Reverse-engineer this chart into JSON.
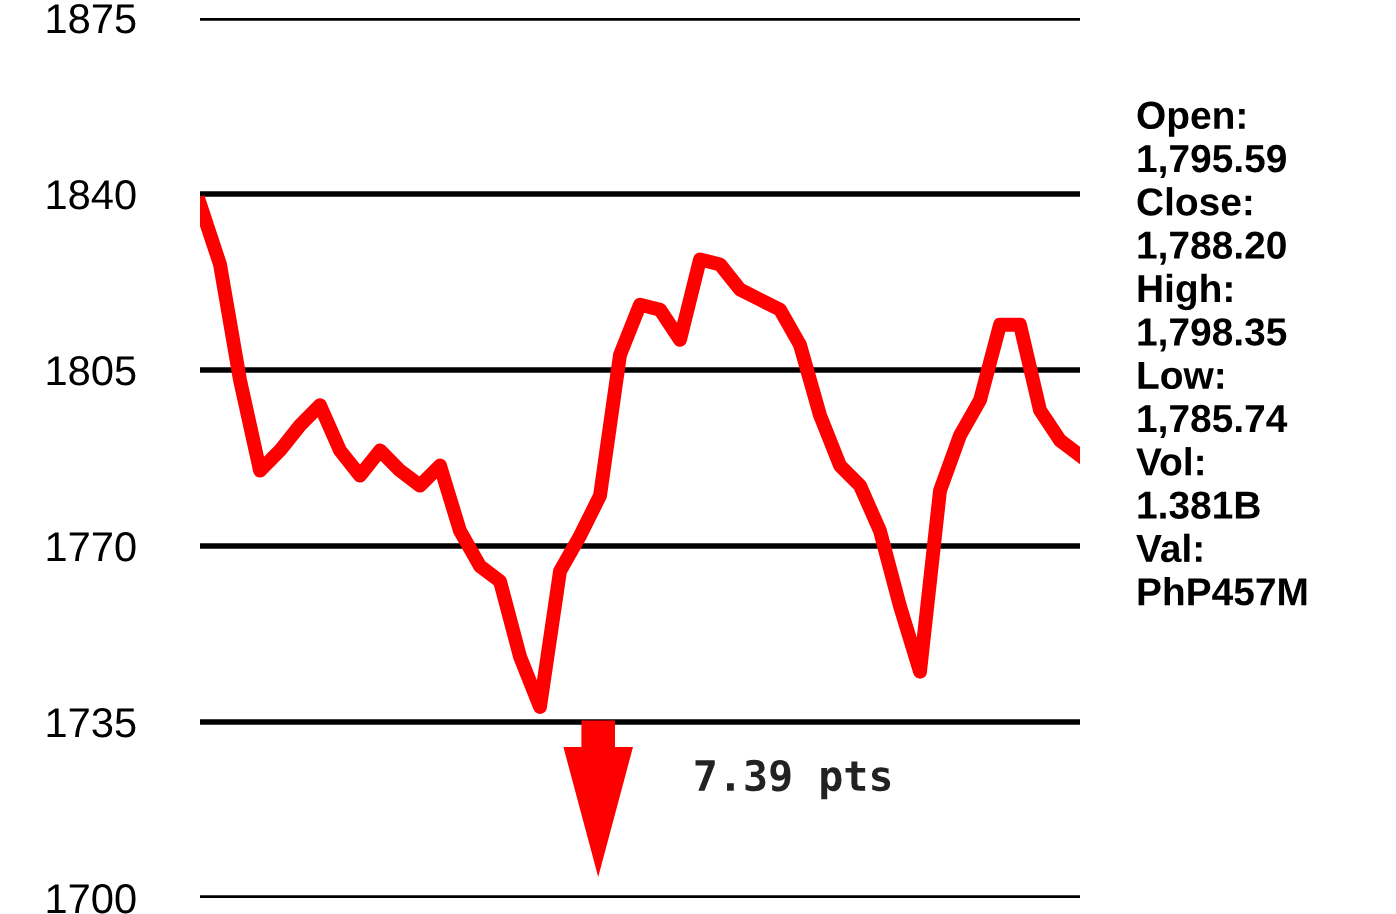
{
  "chart_data": {
    "type": "line",
    "categories": [
      null,
      null,
      null,
      null,
      null,
      null,
      null,
      null,
      null,
      null,
      null,
      null,
      null,
      null,
      null,
      null,
      null,
      null,
      null,
      null,
      null,
      null,
      null,
      null,
      null,
      null,
      null,
      null,
      null,
      null,
      null,
      null,
      null,
      null,
      null,
      null,
      null,
      null,
      null,
      null,
      null,
      null,
      null,
      null,
      null
    ],
    "series": [
      {
        "color": "#ff0000",
        "values": [
          1838,
          1826,
          1803,
          1785,
          1789,
          1794,
          1798,
          1789,
          1784,
          1789,
          1785,
          1782,
          1786,
          1773,
          1766,
          1763,
          1748,
          1738,
          1765,
          1772,
          1780,
          1808,
          1818,
          1817,
          1811,
          1827,
          1826,
          1821,
          1819,
          1817,
          1810,
          1796,
          1786,
          1782,
          1773,
          1758,
          1745,
          1781,
          1792,
          1799,
          1814,
          1814,
          1797,
          1791,
          1788
        ]
      }
    ],
    "ylim": [
      1700,
      1875
    ],
    "yticks": [
      1700,
      1735,
      1770,
      1805,
      1840,
      1875
    ],
    "grid": "y",
    "marker": "none",
    "line_style": "solid",
    "annotations": [
      "7.39 pts",
      "Open:\n1,795.59\nClose:\n1,788.20\nHigh:\n1,798.35\nLow:\n1,785.74\nVol:\n1.381B\nVal:\nPhP457M"
    ]
  }
}
